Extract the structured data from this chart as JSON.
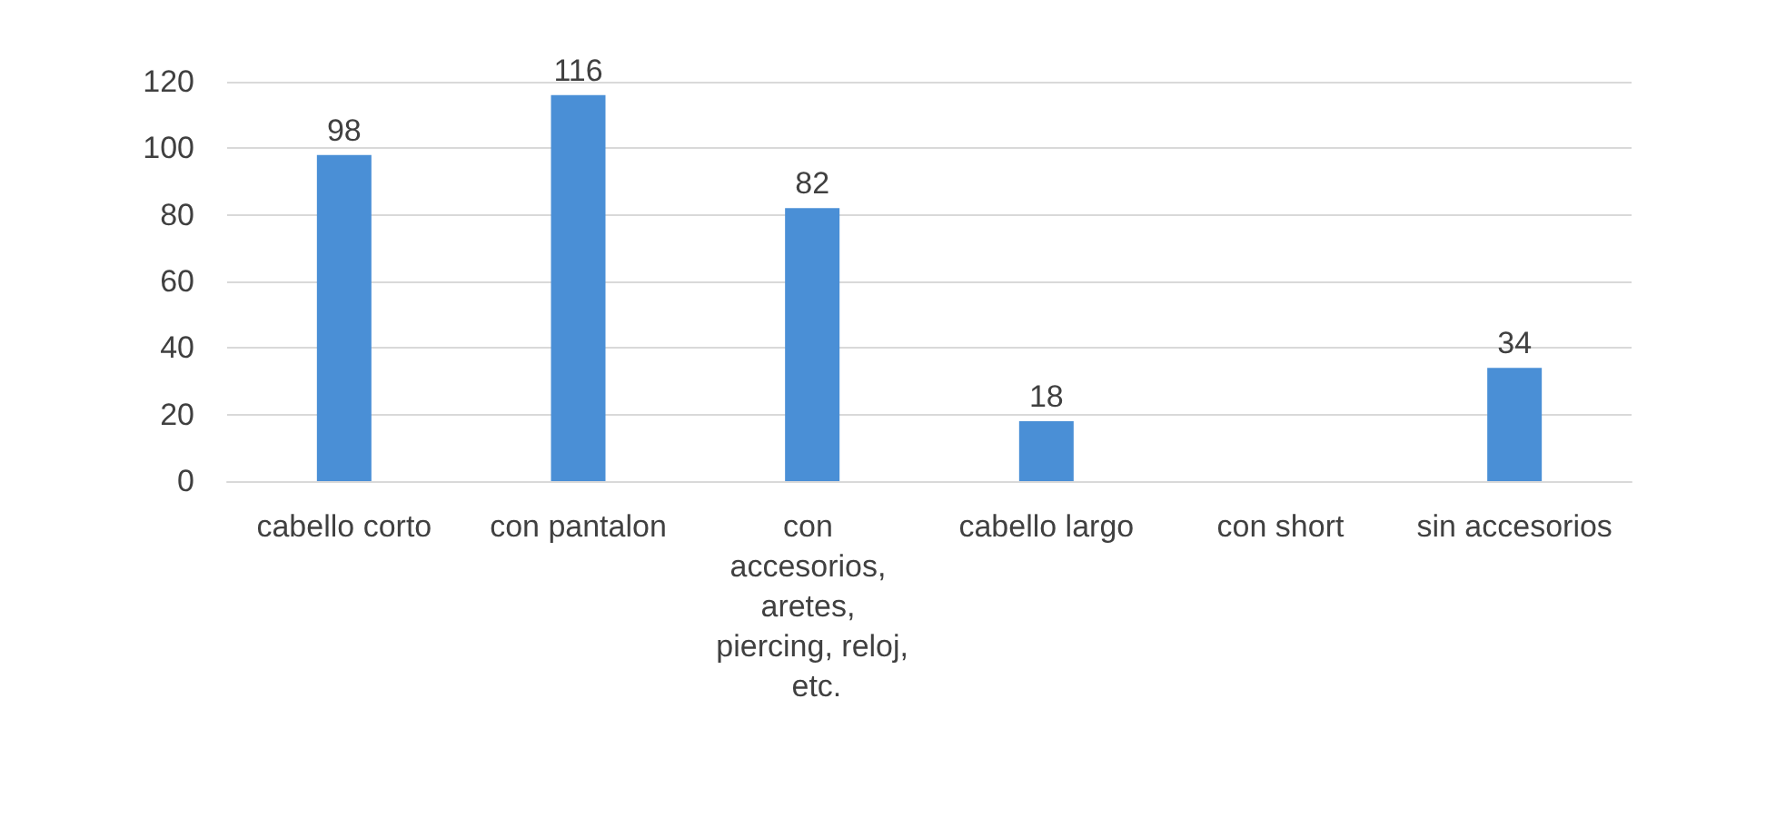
{
  "chart_data": {
    "type": "bar",
    "categories": [
      "cabello corto",
      "con pantalon",
      "con accesorios, aretes, piercing, reloj, etc.",
      "cabello largo",
      "con short",
      "sin accesorios"
    ],
    "values": [
      98,
      116,
      82,
      18,
      null,
      34
    ],
    "value_labels": [
      "98",
      "116",
      "82",
      "18",
      null,
      "34"
    ],
    "color": "#4a8fd6",
    "ylim": [
      0,
      120
    ],
    "yticks": [
      0,
      20,
      40,
      60,
      80,
      100,
      120
    ],
    "grid": true
  }
}
